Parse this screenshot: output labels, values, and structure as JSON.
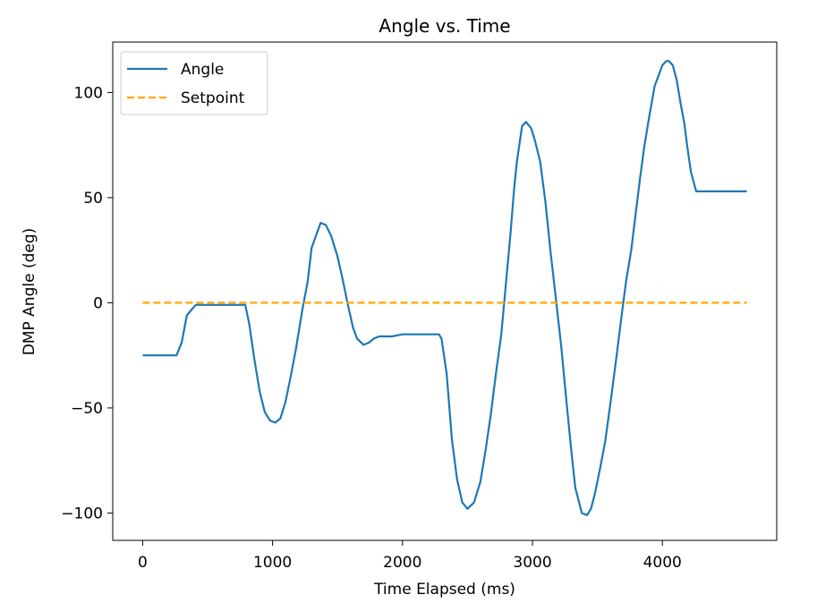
{
  "chart_data": {
    "type": "line",
    "title": "Angle vs. Time",
    "xlabel": "Time Elapsed (ms)",
    "ylabel": "DMP Angle (deg)",
    "xlim": [
      -230,
      4880
    ],
    "ylim": [
      -113,
      124
    ],
    "grid": false,
    "legend_position": "upper-left",
    "xticks": [
      {
        "value": 0,
        "label": "0"
      },
      {
        "value": 1000,
        "label": "1000"
      },
      {
        "value": 2000,
        "label": "2000"
      },
      {
        "value": 3000,
        "label": "3000"
      },
      {
        "value": 4000,
        "label": "4000"
      }
    ],
    "yticks": [
      {
        "value": 100,
        "label": "100"
      },
      {
        "value": 50,
        "label": "50"
      },
      {
        "value": 0,
        "label": "0"
      },
      {
        "value": -50,
        "label": "−50"
      },
      {
        "value": -100,
        "label": "−100"
      }
    ],
    "series": [
      {
        "name": "Angle",
        "color": "#1f77b4",
        "style": "solid",
        "x": [
          0,
          130,
          260,
          300,
          340,
          380,
          410,
          600,
          790,
          820,
          860,
          900,
          940,
          980,
          1020,
          1060,
          1100,
          1140,
          1180,
          1230,
          1270,
          1300,
          1340,
          1370,
          1410,
          1450,
          1500,
          1540,
          1580,
          1620,
          1650,
          1700,
          1740,
          1780,
          1820,
          1860,
          1920,
          2000,
          2100,
          2200,
          2280,
          2300,
          2340,
          2380,
          2420,
          2460,
          2500,
          2550,
          2600,
          2640,
          2680,
          2720,
          2760,
          2790,
          2830,
          2860,
          2880,
          2920,
          2950,
          2990,
          3020,
          3060,
          3100,
          3140,
          3180,
          3220,
          3260,
          3300,
          3330,
          3380,
          3420,
          3450,
          3480,
          3520,
          3560,
          3600,
          3640,
          3680,
          3720,
          3760,
          3790,
          3830,
          3860,
          3900,
          3940,
          3970,
          4000,
          4030,
          4050,
          4080,
          4110,
          4140,
          4170,
          4190,
          4220,
          4260,
          4300,
          4340,
          4380,
          4420,
          4460,
          4490,
          4520,
          4560,
          4590,
          4620,
          4650
        ],
        "y": [
          -25,
          -25,
          -25,
          -19,
          -6,
          -3,
          -1,
          -1,
          -1,
          -10,
          -27,
          -42,
          -52,
          -56,
          -57,
          -55,
          -47,
          -35,
          -22,
          -3,
          10,
          26,
          33,
          38,
          37,
          32,
          22,
          11,
          -1,
          -12,
          -17,
          -20,
          -19,
          -17,
          -16,
          -16,
          -16,
          -15,
          -15,
          -15,
          -15,
          -17,
          -34,
          -65,
          -84,
          -95,
          -98,
          -95,
          -85,
          -70,
          -53,
          -33,
          -15,
          5,
          32,
          55,
          67,
          84,
          86,
          83,
          77,
          67,
          48,
          24,
          2,
          -20,
          -46,
          -71,
          -88,
          -100,
          -101,
          -98,
          -91,
          -79,
          -66,
          -48,
          -29,
          -9,
          10,
          25,
          40,
          60,
          74,
          89,
          103,
          108,
          113,
          115,
          115,
          113,
          106,
          95,
          85,
          75,
          62,
          53,
          53,
          53,
          53,
          53,
          53,
          53,
          53,
          53,
          53,
          53,
          53
        ],
        "x_note_removed": true
      },
      {
        "name": "Setpoint",
        "color": "#ffa500",
        "style": "dashed",
        "x": [
          0,
          4650
        ],
        "y": [
          0,
          0
        ]
      }
    ]
  }
}
